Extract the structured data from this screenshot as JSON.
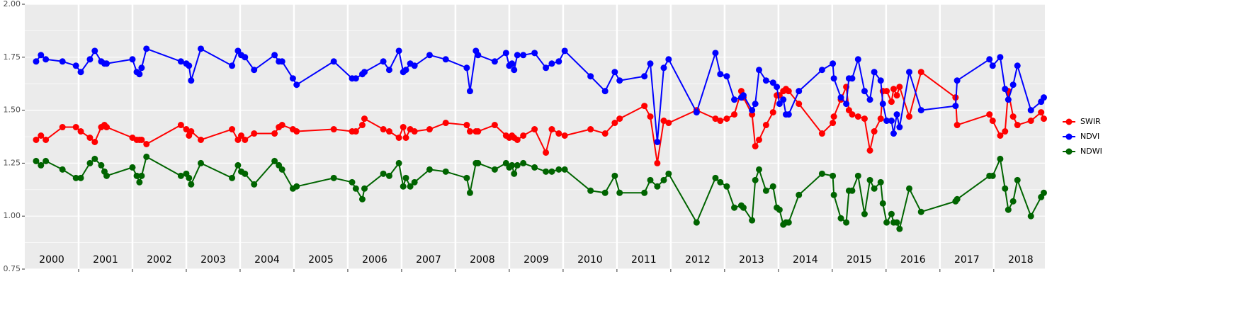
{
  "chart_data": {
    "type": "line",
    "xlim": [
      2000,
      2018.95
    ],
    "ylim": [
      0.75,
      2
    ],
    "yticks": [
      0.75,
      {
        "value": 1,
        "label": "1.00"
      },
      1.25,
      {
        "value": 1.5,
        "label": "1.50"
      },
      1.75,
      {
        "value": 2,
        "label": "2.00"
      }
    ],
    "xticks": [
      2001,
      2002,
      2003,
      2004,
      2005,
      2006,
      2007,
      2008,
      2009,
      2010,
      2011,
      2012,
      2013,
      2014,
      2015,
      2016,
      2017,
      2018
    ],
    "year_labels": [
      2000,
      2001,
      2002,
      2003,
      2004,
      2005,
      2006,
      2007,
      2008,
      2009,
      2010,
      2011,
      2012,
      2013,
      2014,
      2015,
      2016,
      2017,
      2018
    ],
    "grid": true,
    "legend": "right",
    "x": [
      2000.21,
      2000.3,
      2000.39,
      2000.7,
      2000.95,
      2001.04,
      2001.21,
      2001.3,
      2001.42,
      2001.48,
      2001.52,
      2002.0,
      2002.08,
      2002.13,
      2002.17,
      2002.26,
      2002.9,
      2003.0,
      2003.05,
      2003.09,
      2003.27,
      2003.85,
      2003.96,
      2004.02,
      2004.09,
      2004.26,
      2004.64,
      2004.72,
      2004.78,
      2004.98,
      2005.05,
      2005.74,
      2006.08,
      2006.15,
      2006.27,
      2006.31,
      2006.66,
      2006.77,
      2006.95,
      2007.03,
      2007.08,
      2007.16,
      2007.24,
      2007.52,
      2007.82,
      2008.21,
      2008.27,
      2008.38,
      2008.42,
      2008.73,
      2008.94,
      2009.0,
      2009.05,
      2009.09,
      2009.15,
      2009.26,
      2009.47,
      2009.68,
      2009.79,
      2009.92,
      2010.03,
      2010.51,
      2010.78,
      2010.96,
      2011.05,
      2011.51,
      2011.62,
      2011.75,
      2011.87,
      2011.96,
      2012.48,
      2012.83,
      2012.92,
      2013.04,
      2013.18,
      2013.31,
      2013.35,
      2013.51,
      2013.57,
      2013.64,
      2013.77,
      2013.9,
      2013.97,
      2014.02,
      2014.09,
      2014.14,
      2014.19,
      2014.38,
      2014.81,
      2015.01,
      2015.03,
      2015.16,
      2015.26,
      2015.31,
      2015.37,
      2015.48,
      2015.6,
      2015.7,
      2015.78,
      2015.9,
      2015.94,
      2016.01,
      2016.1,
      2016.14,
      2016.2,
      2016.25,
      2016.43,
      2016.65,
      2017.29,
      2017.32,
      2017.92,
      2017.98,
      2018.12,
      2018.21,
      2018.27,
      2018.36,
      2018.44,
      2018.69,
      2018.88,
      2018.93
    ],
    "series": [
      {
        "name": "SWIR",
        "color": "#ff0000",
        "values": [
          1.36,
          1.38,
          1.36,
          1.42,
          1.42,
          1.4,
          1.37,
          1.35,
          1.42,
          1.43,
          1.42,
          1.37,
          1.36,
          1.36,
          1.36,
          1.34,
          1.43,
          1.41,
          1.38,
          1.4,
          1.36,
          1.41,
          1.36,
          1.38,
          1.36,
          1.39,
          1.39,
          1.42,
          1.43,
          1.41,
          1.4,
          1.41,
          1.4,
          1.4,
          1.43,
          1.46,
          1.41,
          1.4,
          1.37,
          1.42,
          1.37,
          1.41,
          1.4,
          1.41,
          1.44,
          1.43,
          1.4,
          1.4,
          1.4,
          1.43,
          1.38,
          1.37,
          1.38,
          1.37,
          1.36,
          1.38,
          1.41,
          1.3,
          1.41,
          1.39,
          1.38,
          1.41,
          1.39,
          1.44,
          1.46,
          1.52,
          1.47,
          1.25,
          1.45,
          1.44,
          1.5,
          1.46,
          1.45,
          1.46,
          1.48,
          1.59,
          1.56,
          1.48,
          1.33,
          1.36,
          1.43,
          1.49,
          1.57,
          1.57,
          1.59,
          1.6,
          1.59,
          1.53,
          1.39,
          1.44,
          1.47,
          1.55,
          1.61,
          1.5,
          1.48,
          1.47,
          1.46,
          1.31,
          1.4,
          1.46,
          1.59,
          1.59,
          1.54,
          1.6,
          1.57,
          1.61,
          1.47,
          1.68,
          1.56,
          1.43,
          1.48,
          1.45,
          1.38,
          1.4,
          1.59,
          1.47,
          1.43,
          1.45,
          1.49,
          1.46
        ]
      },
      {
        "name": "NDVI",
        "color": "#0000ff",
        "values": [
          1.73,
          1.76,
          1.74,
          1.73,
          1.71,
          1.68,
          1.74,
          1.78,
          1.73,
          1.72,
          1.72,
          1.74,
          1.68,
          1.67,
          1.7,
          1.79,
          1.73,
          1.72,
          1.71,
          1.64,
          1.79,
          1.71,
          1.78,
          1.76,
          1.75,
          1.69,
          1.76,
          1.73,
          1.73,
          1.65,
          1.62,
          1.73,
          1.65,
          1.65,
          1.67,
          1.68,
          1.73,
          1.69,
          1.78,
          1.68,
          1.69,
          1.72,
          1.71,
          1.76,
          1.74,
          1.7,
          1.59,
          1.78,
          1.76,
          1.73,
          1.77,
          1.71,
          1.72,
          1.69,
          1.76,
          1.76,
          1.77,
          1.7,
          1.72,
          1.73,
          1.78,
          1.66,
          1.59,
          1.68,
          1.64,
          1.66,
          1.72,
          1.35,
          1.7,
          1.74,
          1.49,
          1.77,
          1.67,
          1.66,
          1.55,
          1.56,
          1.57,
          1.5,
          1.53,
          1.69,
          1.64,
          1.63,
          1.61,
          1.53,
          1.55,
          1.48,
          1.48,
          1.59,
          1.69,
          1.72,
          1.65,
          1.56,
          1.53,
          1.65,
          1.65,
          1.74,
          1.59,
          1.55,
          1.68,
          1.64,
          1.53,
          1.45,
          1.45,
          1.39,
          1.48,
          1.42,
          1.68,
          1.5,
          1.52,
          1.64,
          1.74,
          1.71,
          1.75,
          1.6,
          1.55,
          1.62,
          1.71,
          1.5,
          1.54,
          1.56
        ]
      },
      {
        "name": "NDWI",
        "color": "#006400",
        "values": [
          1.26,
          1.24,
          1.26,
          1.22,
          1.18,
          1.18,
          1.25,
          1.27,
          1.24,
          1.21,
          1.19,
          1.23,
          1.19,
          1.16,
          1.19,
          1.28,
          1.19,
          1.2,
          1.18,
          1.15,
          1.25,
          1.18,
          1.24,
          1.21,
          1.2,
          1.15,
          1.26,
          1.24,
          1.22,
          1.13,
          1.14,
          1.18,
          1.16,
          1.13,
          1.08,
          1.13,
          1.2,
          1.19,
          1.25,
          1.14,
          1.18,
          1.14,
          1.16,
          1.22,
          1.21,
          1.18,
          1.11,
          1.25,
          1.25,
          1.22,
          1.25,
          1.23,
          1.24,
          1.2,
          1.24,
          1.25,
          1.23,
          1.21,
          1.21,
          1.22,
          1.22,
          1.12,
          1.11,
          1.19,
          1.11,
          1.11,
          1.17,
          1.14,
          1.17,
          1.2,
          0.97,
          1.18,
          1.16,
          1.14,
          1.04,
          1.05,
          1.04,
          0.98,
          1.17,
          1.22,
          1.12,
          1.14,
          1.04,
          1.03,
          0.96,
          0.97,
          0.97,
          1.1,
          1.2,
          1.19,
          1.1,
          0.99,
          0.97,
          1.12,
          1.12,
          1.19,
          1.01,
          1.17,
          1.13,
          1.16,
          1.06,
          0.97,
          1.01,
          0.97,
          0.97,
          0.94,
          1.13,
          1.02,
          1.07,
          1.08,
          1.19,
          1.19,
          1.27,
          1.13,
          1.03,
          1.07,
          1.17,
          1.0,
          1.09,
          1.11
        ]
      }
    ]
  }
}
